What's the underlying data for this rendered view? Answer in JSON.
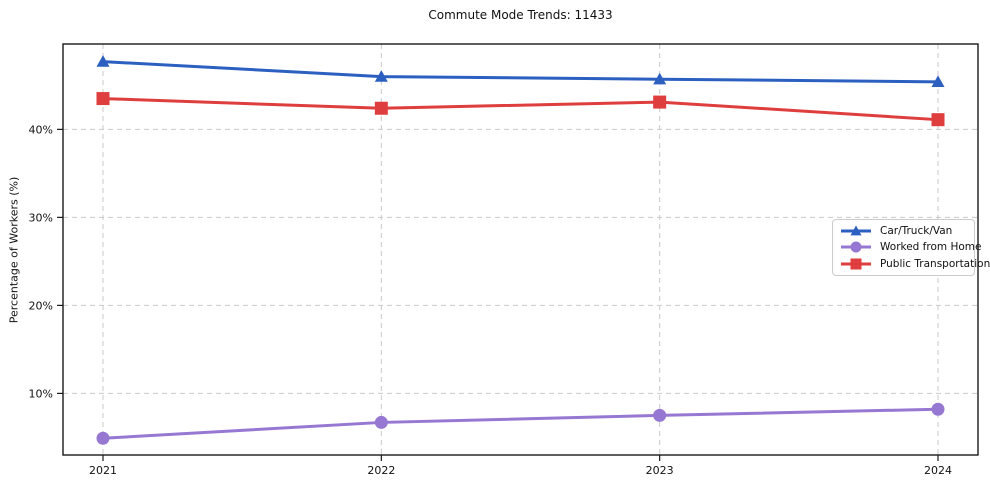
{
  "chart_data": {
    "type": "line",
    "title": "Commute Mode Trends: 11433",
    "xlabel": "",
    "ylabel": "Percentage of Workers (%)",
    "categories": [
      "2021",
      "2022",
      "2023",
      "2024"
    ],
    "yticks": [
      {
        "value": 10,
        "label": "10%"
      },
      {
        "value": 20,
        "label": "20%"
      },
      {
        "value": 30,
        "label": "30%"
      },
      {
        "value": 40,
        "label": "40%"
      }
    ],
    "ylim": [
      3,
      49.7
    ],
    "grid": true,
    "grid_style": "dashed",
    "legend_position": "center-right",
    "series": [
      {
        "name": "Car/Truck/Van",
        "color": "#2b5fc0",
        "marker": "triangle",
        "values": [
          47.7,
          46.0,
          45.7,
          45.4
        ]
      },
      {
        "name": "Worked from Home",
        "color": "#9678d2",
        "marker": "circle",
        "values": [
          4.9,
          6.7,
          7.5,
          8.2
        ]
      },
      {
        "name": "Public Transportation",
        "color": "#de3e3e",
        "marker": "square",
        "values": [
          43.5,
          42.4,
          43.1,
          41.1
        ]
      }
    ]
  },
  "colors": {
    "grid": "#c9c9c9",
    "frame": "#1a1a1a",
    "background": "#ffffff"
  }
}
